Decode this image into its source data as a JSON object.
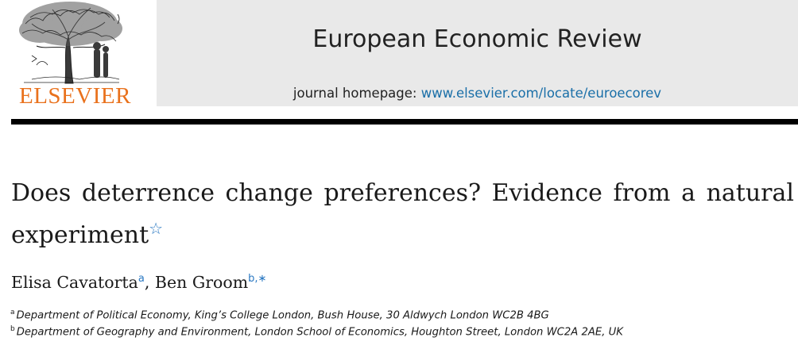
{
  "publisher": {
    "name": "ELSEVIER"
  },
  "journal": {
    "title": "European Economic Review",
    "homepage_prefix": "journal homepage:",
    "homepage_url": "www.elsevier.com/locate/euroecorev"
  },
  "article": {
    "title": "Does deterrence change preferences? Evidence from a natural experiment",
    "title_note_symbol": "☆"
  },
  "authors": [
    {
      "name": "Elisa Cavatorta",
      "marks": "a"
    },
    {
      "name": "Ben Groom",
      "marks": "b,∗"
    }
  ],
  "author_separator": ",",
  "affiliations": [
    {
      "mark": "a",
      "text": "Department of Political Economy, King’s College London, Bush House, 30 Aldwych London WC2B 4BG"
    },
    {
      "mark": "b",
      "text": "Department of Geography and Environment, London School of Economics, Houghton Street, London WC2A 2AE, UK"
    }
  ],
  "colors": {
    "brand_orange": "#e9711c",
    "link_blue": "#1a6fa8",
    "banner_gray": "#e9e9e9"
  }
}
